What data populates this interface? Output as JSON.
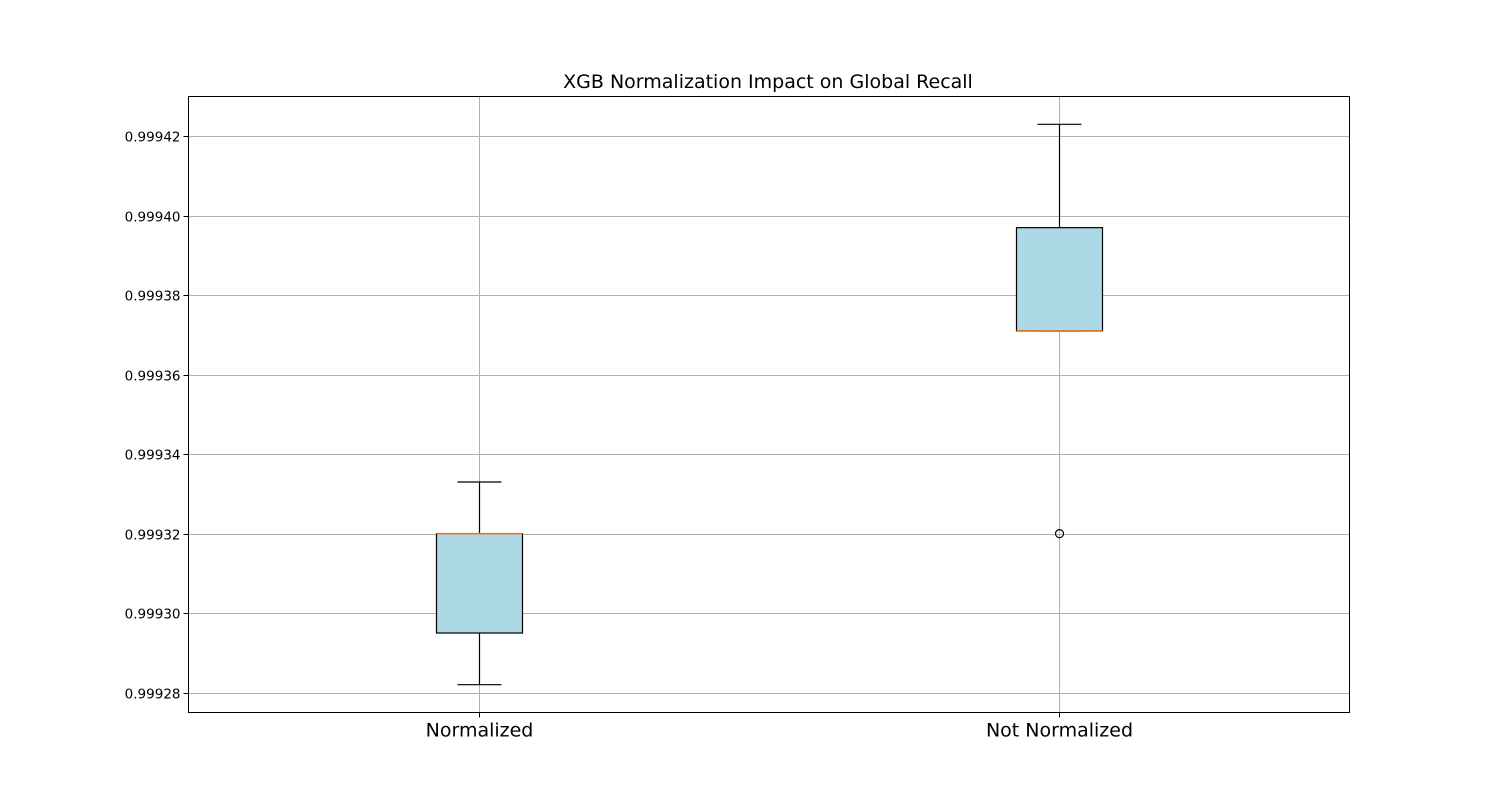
{
  "chart_data": {
    "type": "box",
    "title": "XGB Normalization Impact on Global Recall",
    "xlabel": "",
    "ylabel": "",
    "categories": [
      "Normalized",
      "Not Normalized"
    ],
    "ylim": [
      0.999275,
      0.99943
    ],
    "yticks": [
      0.99928,
      0.9993,
      0.99932,
      0.99934,
      0.99936,
      0.99938,
      0.9994,
      0.99942
    ],
    "ytick_labels": [
      "0.99928",
      "0.99930",
      "0.99932",
      "0.99934",
      "0.99936",
      "0.99938",
      "0.99940",
      "0.99942"
    ],
    "grid": true,
    "boxes": [
      {
        "category": "Normalized",
        "whisker_low": 0.999282,
        "q1": 0.999295,
        "median": 0.99932,
        "q3": 0.99932,
        "whisker_high": 0.999333,
        "outliers": []
      },
      {
        "category": "Not Normalized",
        "whisker_low": 0.999371,
        "q1": 0.999371,
        "median": 0.999371,
        "q3": 0.999397,
        "whisker_high": 0.999423,
        "outliers": [
          0.99932
        ]
      }
    ],
    "colors": {
      "box_fill": "#add8e6",
      "box_edge": "#000000",
      "median": "#e07b22",
      "grid": "#b0b0b0",
      "axes": "#000000"
    }
  }
}
